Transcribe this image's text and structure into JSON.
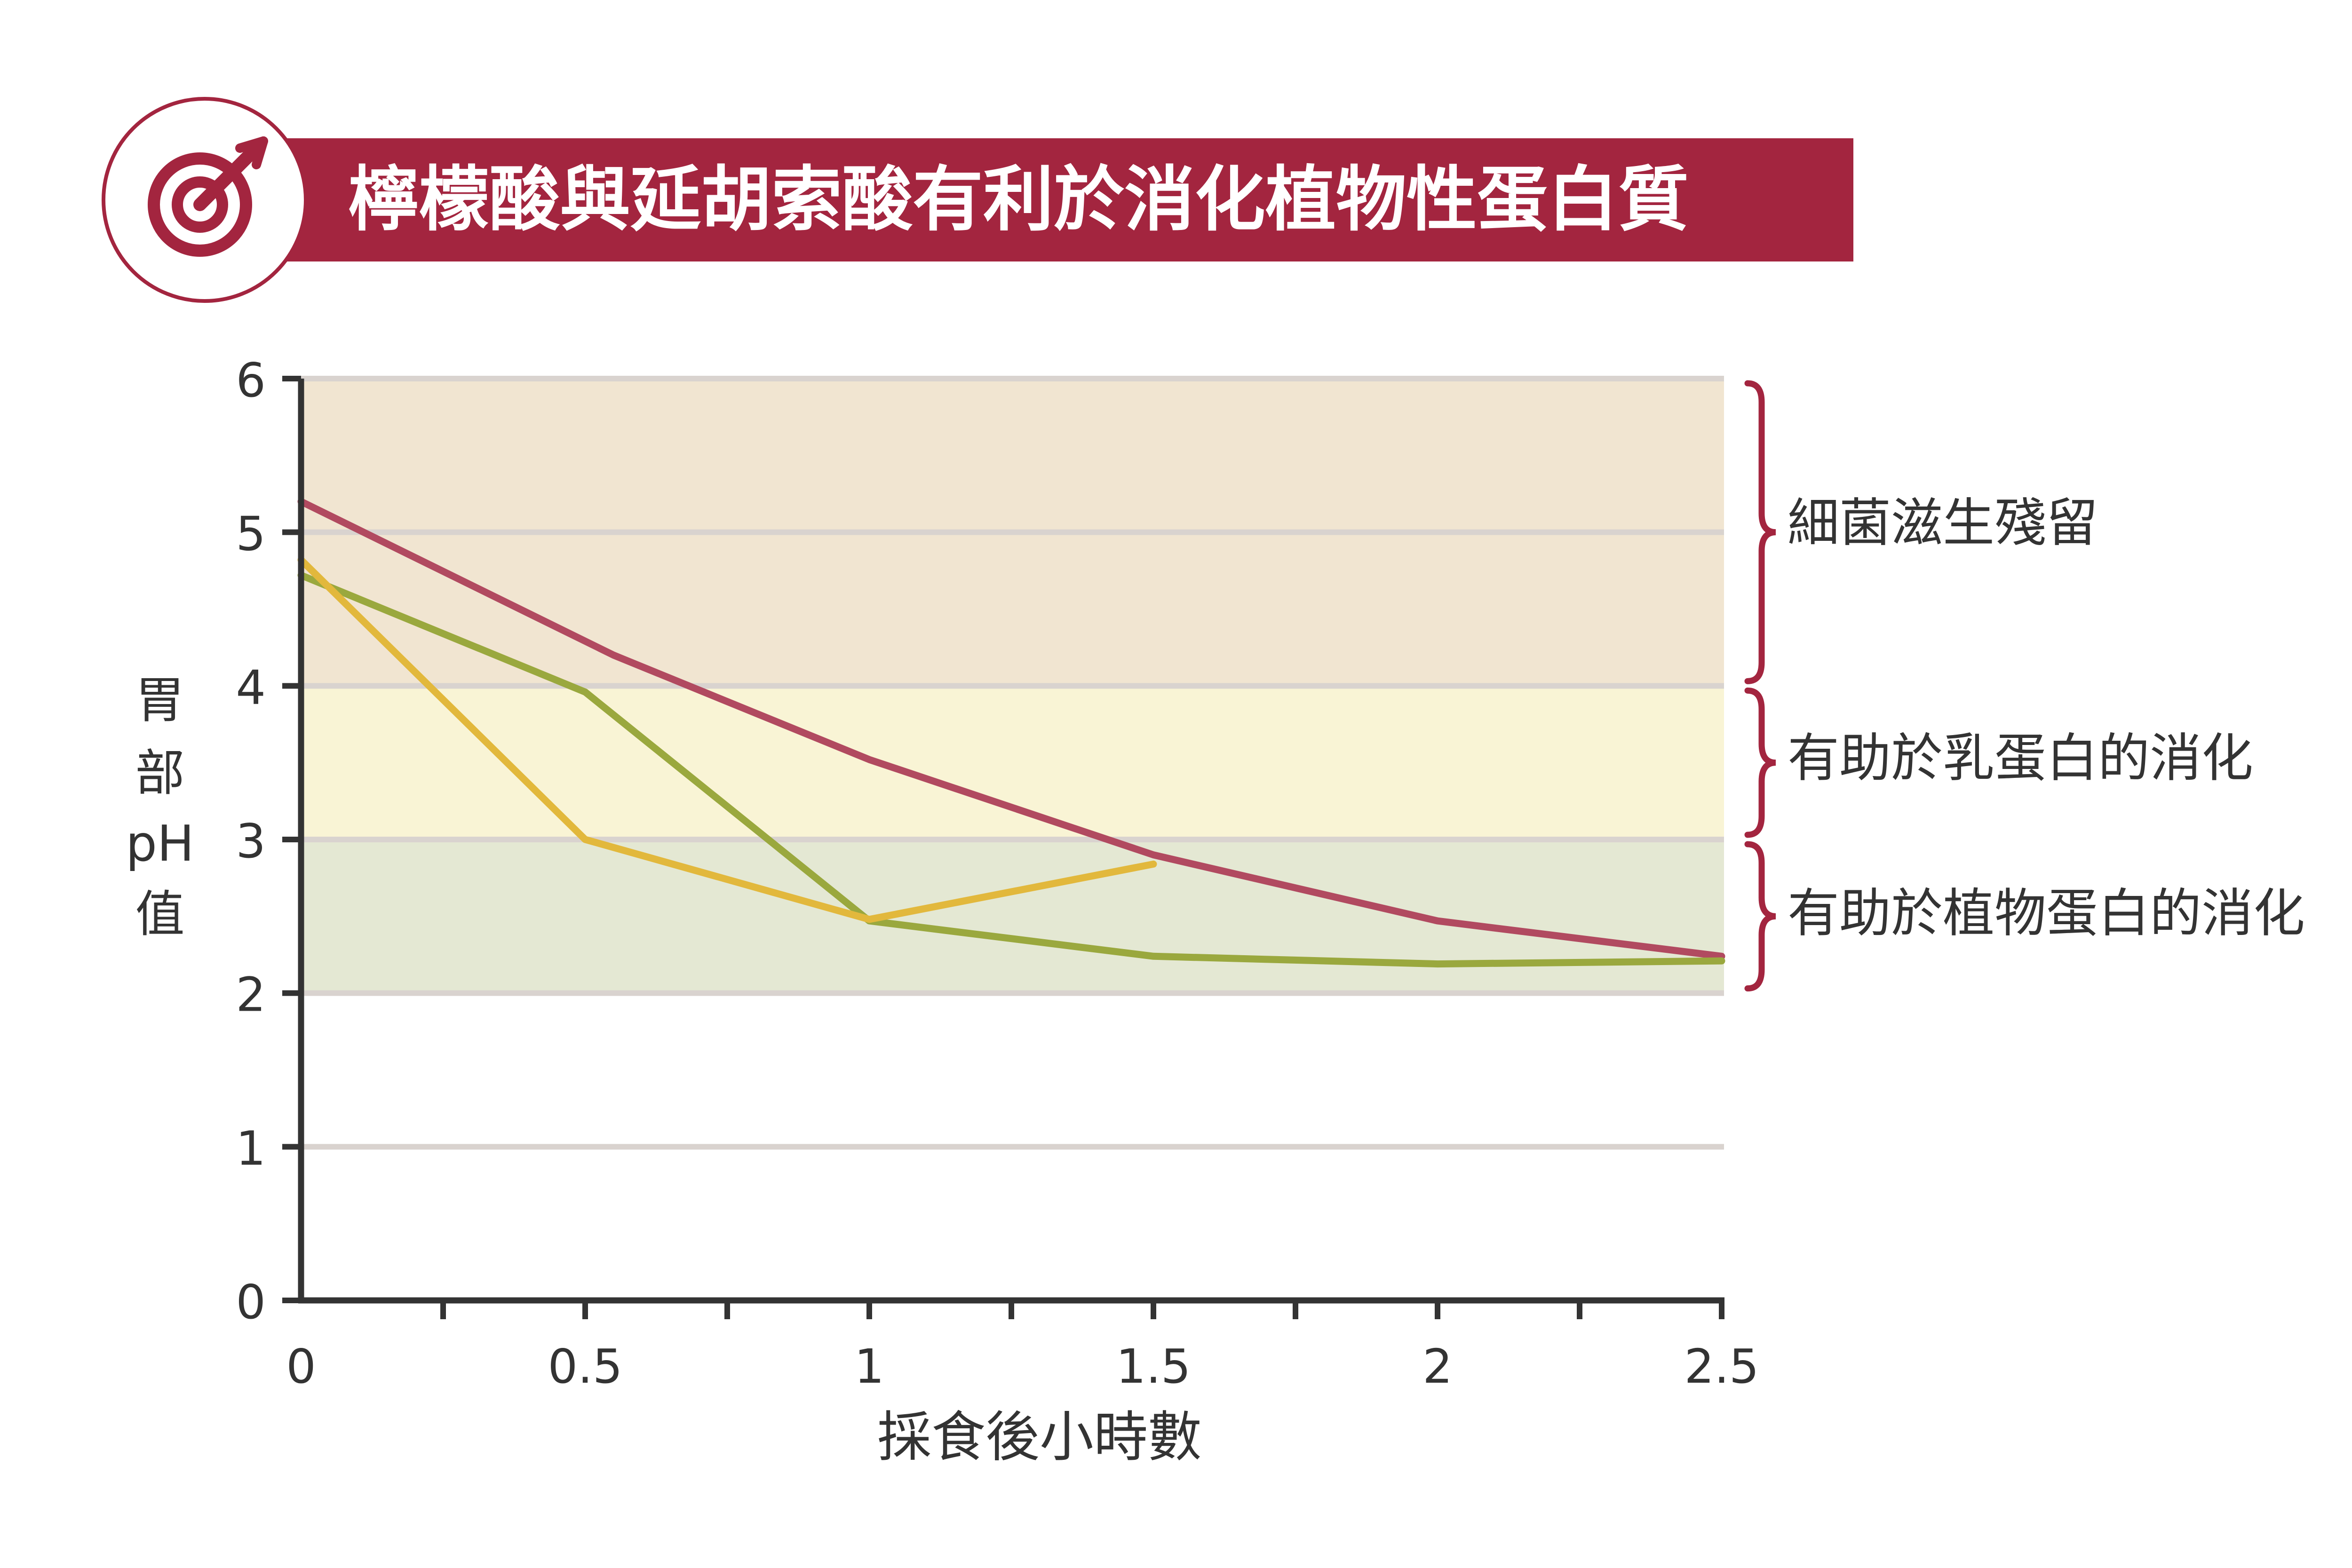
{
  "header": {
    "title": "檸檬酸與延胡索酸有利於消化植物性蛋白質",
    "icon": "target-arrow-icon"
  },
  "colors": {
    "brand": "#a3253f",
    "zone_bacteria": "#f1e5d1",
    "zone_milk": "#f9f4d5",
    "zone_plant": "#e4e8d3",
    "series_red": "#b14a60",
    "series_green": "#9aa83e",
    "series_yellow": "#e2b83c"
  },
  "chart_data": {
    "type": "line",
    "title": "",
    "xlabel": "採食後小時數",
    "ylabel": "胃部pH值",
    "ylabel_lines": [
      "胃",
      "部",
      "pH",
      "值"
    ],
    "xlim": [
      0,
      2.5
    ],
    "ylim": [
      0,
      6
    ],
    "x_ticks": [
      0,
      0.25,
      0.5,
      0.75,
      1,
      1.25,
      1.5,
      1.75,
      2,
      2.25,
      2.5
    ],
    "x_tick_labels": [
      {
        "value": 0,
        "label": "0"
      },
      {
        "value": 0.5,
        "label": "0.5"
      },
      {
        "value": 1,
        "label": "1"
      },
      {
        "value": 1.5,
        "label": "1.5"
      },
      {
        "value": 2,
        "label": "2"
      },
      {
        "value": 2.5,
        "label": "2.5"
      }
    ],
    "y_ticks": [
      {
        "value": 0,
        "label": "0"
      },
      {
        "value": 1,
        "label": "1"
      },
      {
        "value": 2,
        "label": "2"
      },
      {
        "value": 3,
        "label": "3"
      },
      {
        "value": 4,
        "label": "4"
      },
      {
        "value": 5,
        "label": "5"
      },
      {
        "value": 6,
        "label": "6"
      }
    ],
    "grid": true,
    "zones": [
      {
        "label": "細菌滋生殘留",
        "y_from": 4,
        "y_to": 6,
        "color": "#f1e5d1"
      },
      {
        "label": "有助於乳蛋白的消化",
        "y_from": 3,
        "y_to": 4,
        "color": "#f9f4d5"
      },
      {
        "label": "有助於植物蛋白的消化",
        "y_from": 2,
        "y_to": 3,
        "color": "#e4e8d3"
      }
    ],
    "series": [
      {
        "color": "#b14a60",
        "x": [
          0,
          0.55,
          1,
          1.5,
          2,
          2.5
        ],
        "y": [
          5.2,
          4.2,
          3.52,
          2.9,
          2.47,
          2.24
        ]
      },
      {
        "color": "#9aa83e",
        "x": [
          0,
          0.5,
          1,
          1.5,
          2,
          2.5
        ],
        "y": [
          4.72,
          3.96,
          2.47,
          2.24,
          2.19,
          2.21
        ]
      },
      {
        "color": "#e2b83c",
        "x": [
          0,
          0.5,
          1,
          1.5
        ],
        "y": [
          4.82,
          3.0,
          2.48,
          2.84
        ]
      }
    ]
  }
}
